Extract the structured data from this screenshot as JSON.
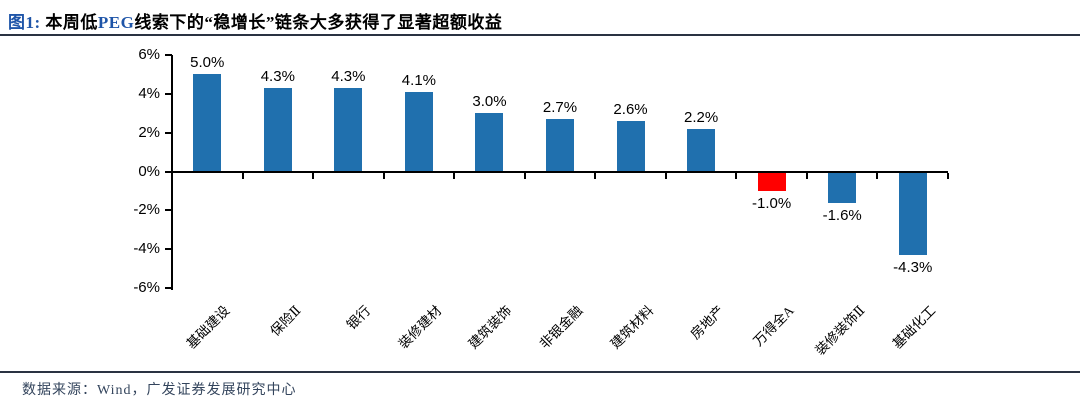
{
  "header": {
    "title_parts": [
      {
        "text": "图1:",
        "color": "#1f55a8"
      },
      {
        "text": "  本周低",
        "color": "#000000"
      },
      {
        "text": "PEG",
        "color": "#1f55a8"
      },
      {
        "text": "线索下的“稳增长”链条大多获得了显著超额收益",
        "color": "#000000"
      }
    ]
  },
  "chart_data": {
    "type": "bar",
    "categories": [
      "基础建设",
      "保险Ⅱ",
      "银行",
      "装修建材",
      "建筑装饰",
      "非银金融",
      "建筑材料",
      "房地产",
      "万得全A",
      "装修装饰Ⅱ",
      "基础化工"
    ],
    "values": [
      5.0,
      4.3,
      4.3,
      4.1,
      3.0,
      2.7,
      2.6,
      2.2,
      -1.0,
      -1.6,
      -4.3
    ],
    "value_labels": [
      "5.0%",
      "4.3%",
      "4.3%",
      "4.1%",
      "3.0%",
      "2.7%",
      "2.6%",
      "2.2%",
      "-1.0%",
      "-1.6%",
      "-4.3%"
    ],
    "bar_colors": [
      "#2070ae",
      "#2070ae",
      "#2070ae",
      "#2070ae",
      "#2070ae",
      "#2070ae",
      "#2070ae",
      "#2070ae",
      "#ff0000",
      "#2070ae",
      "#2070ae"
    ],
    "title": "本周低PEG线索下的“稳增长”链条大多获得了显著超额收益",
    "xlabel": "",
    "ylabel": "",
    "ylim": [
      -6,
      6
    ],
    "yticks": [
      6,
      4,
      2,
      0,
      -2,
      -4,
      -6
    ],
    "ytick_labels": [
      "6%",
      "4%",
      "2%",
      "0%",
      "-2%",
      "-4%",
      "-6%"
    ],
    "grid": false,
    "legend": "none"
  },
  "footer": {
    "source_text": "数据来源：Wind，广发证券发展研究中心"
  },
  "colors": {
    "bar_blue": "#2070ae",
    "bar_red": "#ff0000",
    "accent_blue": "#1f55a8",
    "rule": "#2a3342",
    "footer_text": "#33445c",
    "axis": "#000000"
  }
}
